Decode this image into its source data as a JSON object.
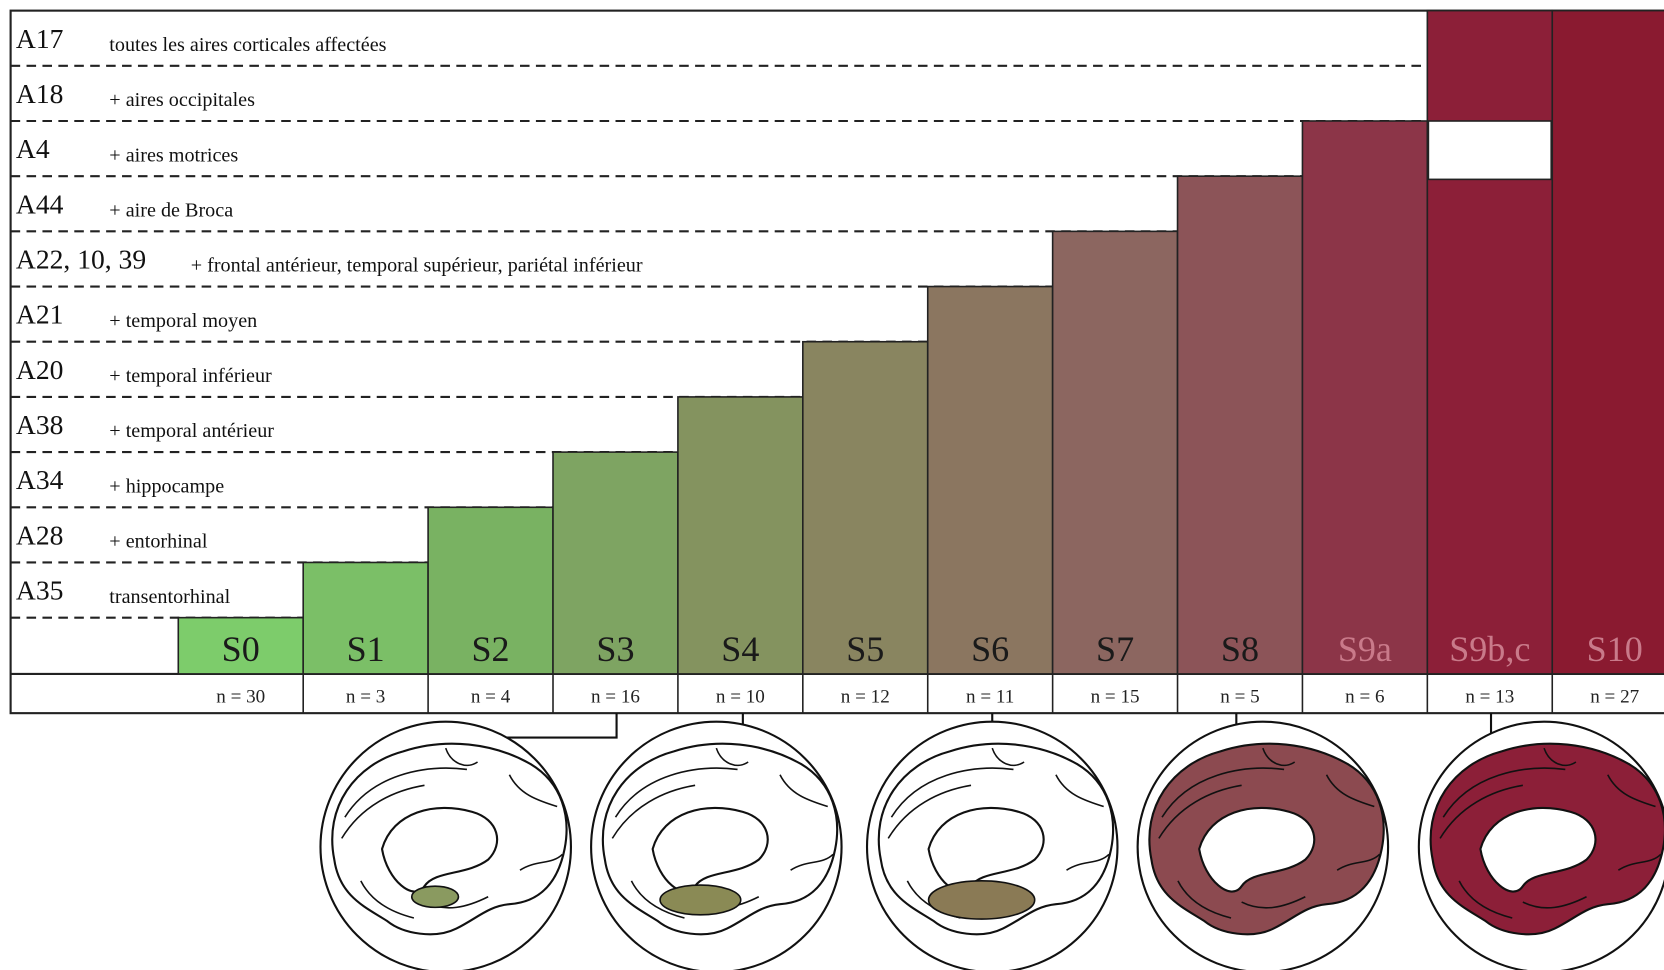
{
  "rows": [
    {
      "code": "A17",
      "label": "toutes les aires corticales affectées"
    },
    {
      "code": "A18",
      "label": "+ aires occipitales"
    },
    {
      "code": "A4",
      "label": "+ aires motrices"
    },
    {
      "code": "A44",
      "label": "+ aire de Broca"
    },
    {
      "code": "A22, 10, 39",
      "label": "+ frontal antérieur, temporal supérieur, pariétal inférieur"
    },
    {
      "code": "A21",
      "label": "+ temporal moyen"
    },
    {
      "code": "A20",
      "label": "+ temporal inférieur"
    },
    {
      "code": "A38",
      "label": "+ temporal antérieur"
    },
    {
      "code": "A34",
      "label": "+ hippocampe"
    },
    {
      "code": "A28",
      "label": "+ entorhinal"
    },
    {
      "code": "A35",
      "label": "transentorhinal"
    }
  ],
  "stages": [
    {
      "name": "S0",
      "n": "n = 30",
      "color": "#7dcc6b"
    },
    {
      "name": "S1",
      "n": "n = 3",
      "color": "#7bbf67"
    },
    {
      "name": "S2",
      "n": "n = 4",
      "color": "#79b262"
    },
    {
      "name": "S3",
      "n": "n = 16",
      "color": "#7ea462"
    },
    {
      "name": "S4",
      "n": "n = 10",
      "color": "#84935f"
    },
    {
      "name": "S5",
      "n": "n = 12",
      "color": "#898560"
    },
    {
      "name": "S6",
      "n": "n = 11",
      "color": "#8b7660"
    },
    {
      "name": "S7",
      "n": "n = 15",
      "color": "#8c6660"
    },
    {
      "name": "S8",
      "n": "n = 5",
      "color": "#8c5458"
    },
    {
      "name": "S9a",
      "n": "n = 6",
      "color": "#8c3548"
    },
    {
      "name": "S9b,c",
      "n": "n = 13",
      "color": "#8c1f38"
    },
    {
      "name": "S10",
      "n": "n = 27",
      "color": "#8a1a30"
    }
  ]
}
